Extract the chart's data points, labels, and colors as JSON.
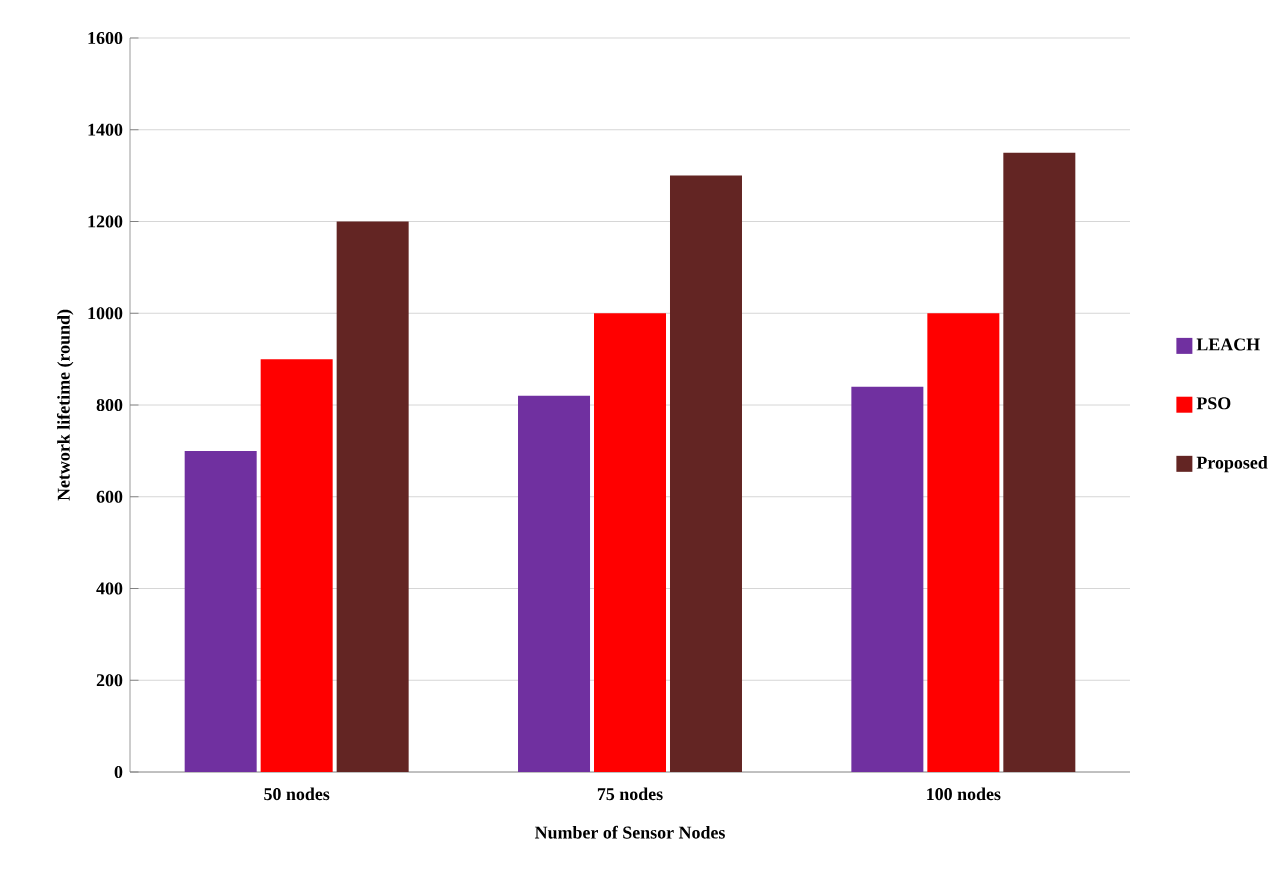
{
  "chart_data": {
    "type": "bar",
    "xlabel": "Number of Sensor Nodes",
    "ylabel": "Network lifetime (round)",
    "categories": [
      "50 nodes",
      "75 nodes",
      "100 nodes"
    ],
    "series": [
      {
        "name": "LEACH",
        "color": "#7030a0",
        "values": [
          700,
          820,
          840
        ]
      },
      {
        "name": "PSO",
        "color": "#ff0000",
        "values": [
          900,
          1000,
          1000
        ]
      },
      {
        "name": "Proposed",
        "color": "#632523",
        "values": [
          1200,
          1300,
          1350
        ]
      }
    ],
    "ylim": [
      0,
      1600
    ],
    "yticks": [
      0,
      200,
      400,
      600,
      800,
      1000,
      1200,
      1400,
      1600
    ],
    "grid": "y",
    "legend": "right"
  }
}
